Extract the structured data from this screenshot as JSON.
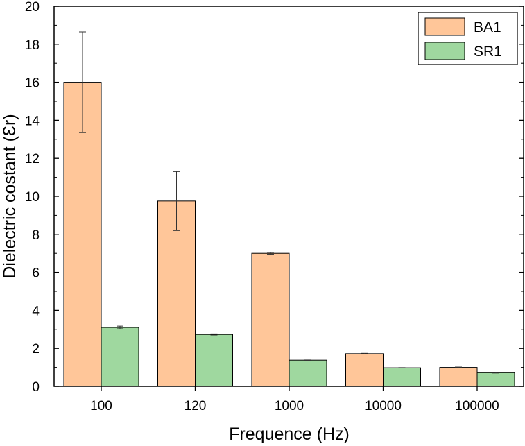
{
  "chart_data": {
    "type": "bar",
    "categories": [
      "100",
      "120",
      "1000",
      "10000",
      "100000"
    ],
    "series": [
      {
        "name": "BA1",
        "color": "#ffc699",
        "values": [
          16.0,
          9.75,
          7.0,
          1.72,
          1.0
        ],
        "errors": [
          2.65,
          1.55,
          0.05,
          0.02,
          0.02
        ]
      },
      {
        "name": "SR1",
        "color": "#9fd89f",
        "values": [
          3.1,
          2.73,
          1.38,
          0.98,
          0.72
        ],
        "errors": [
          0.07,
          0.03,
          0.01,
          0.01,
          0.02
        ]
      }
    ],
    "xlabel": "Frequence (Hz)",
    "ylabel": "Dielectric costant (Ɛr)",
    "ylim": [
      0,
      20
    ],
    "yticks": [
      "0",
      "2",
      "4",
      "6",
      "8",
      "10",
      "12",
      "14",
      "16",
      "18",
      "20"
    ],
    "legend": "top-right",
    "grid": false
  }
}
